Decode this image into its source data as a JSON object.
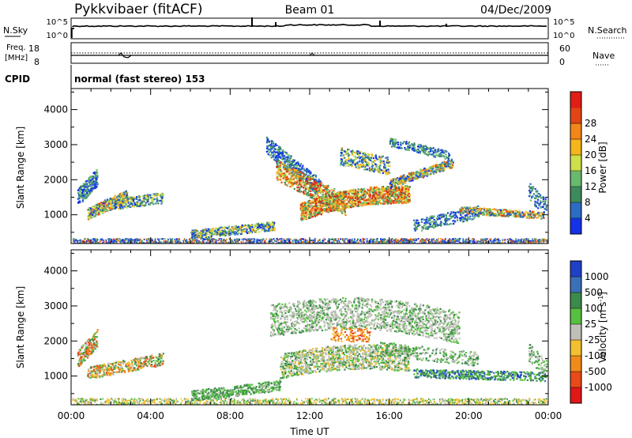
{
  "header": {
    "title": "Pykkvibaer (fitACF)",
    "beam": "Beam 01",
    "date": "04/Dec/2009"
  },
  "strip1": {
    "left_label": "N.Sky",
    "right_label": "N.Search",
    "left_ticks": [
      "10^5",
      "10^0"
    ],
    "right_ticks": [
      "10^5",
      "10^0"
    ]
  },
  "strip2": {
    "left_label_1": "Freq.",
    "left_label_2": "[MHz]",
    "right_label": "Nave",
    "left_ticks": [
      "18",
      "8"
    ],
    "right_ticks": [
      "60",
      "0"
    ]
  },
  "cpid": {
    "label": "CPID",
    "text": "normal (fast stereo) 153"
  },
  "chart_data": [
    {
      "type": "heatmap",
      "panel": "power",
      "ylabel": "Slant Range [km]",
      "x_ticks": [
        "00:00",
        "04:00",
        "08:00",
        "12:00",
        "16:00",
        "20:00",
        "00:00"
      ],
      "x_range_hours": [
        0,
        24
      ],
      "ylim": [
        180,
        4600
      ],
      "y_ticks": [
        1000,
        2000,
        3000,
        4000
      ],
      "colorbar": {
        "label": "Power [dB]",
        "ticks": [
          "4",
          "8",
          "12",
          "16",
          "20",
          "24",
          "28"
        ],
        "colors": [
          "#1432e8",
          "#2b6cc4",
          "#3d8a5c",
          "#69b96e",
          "#cce14a",
          "#f5b51b",
          "#f28618",
          "#e24515",
          "#e01e15"
        ]
      },
      "regions": [
        {
          "t": [
            0.1,
            6.0
          ],
          "range_km": [
            180,
            500
          ],
          "level_db": "4-12"
        },
        {
          "t": [
            0.3,
            4.6
          ],
          "range_km": [
            800,
            1800
          ],
          "level_db": "8-20"
        },
        {
          "t": [
            6.5,
            11.0
          ],
          "range_km": [
            300,
            900
          ],
          "level_db": "4-16"
        },
        {
          "t": [
            10.0,
            17.0
          ],
          "range_km": [
            600,
            2500
          ],
          "level_db": "16-28"
        },
        {
          "t": [
            10.0,
            14.0
          ],
          "range_km": [
            2000,
            3300
          ],
          "level_db": "4-12"
        },
        {
          "t": [
            15.0,
            19.5
          ],
          "range_km": [
            2000,
            3300
          ],
          "level_db": "4-12"
        },
        {
          "t": [
            17.0,
            23.8
          ],
          "range_km": [
            900,
            1500
          ],
          "level_db": "8-20"
        }
      ]
    },
    {
      "type": "heatmap",
      "panel": "velocity",
      "ylabel": "Slant Range [km]",
      "xlabel": "Time UT",
      "x_ticks": [
        "00:00",
        "04:00",
        "08:00",
        "12:00",
        "16:00",
        "20:00",
        "00:00"
      ],
      "x_range_hours": [
        0,
        24
      ],
      "ylim": [
        180,
        4600
      ],
      "y_ticks": [
        1000,
        2000,
        3000,
        4000
      ],
      "colorbar": {
        "label": "Velocity [m s^-1]",
        "ticks": [
          "1000",
          "500",
          "100",
          "25",
          "-25",
          "-100",
          "-500",
          "-1000"
        ],
        "colors": [
          "#2040c8",
          "#3a70b8",
          "#3c8a4c",
          "#56c040",
          "#c0c0b8",
          "#f2c030",
          "#f08a18",
          "#e84a18",
          "#e01818"
        ]
      },
      "regions": [
        {
          "t": [
            0.1,
            7.0
          ],
          "range_km": [
            180,
            500
          ],
          "velocity": "-100 to 25"
        },
        {
          "t": [
            0.3,
            4.6
          ],
          "range_km": [
            700,
            2100
          ],
          "velocity": "-500 to 100"
        },
        {
          "t": [
            7.0,
            12.0
          ],
          "range_km": [
            300,
            900
          ],
          "velocity": "25 to 100"
        },
        {
          "t": [
            10.0,
            19.5
          ],
          "range_km": [
            900,
            3300
          ],
          "velocity": "-25 to 25"
        },
        {
          "t": [
            17.0,
            23.8
          ],
          "range_km": [
            900,
            1500
          ],
          "velocity": "100 to 500"
        }
      ]
    }
  ]
}
